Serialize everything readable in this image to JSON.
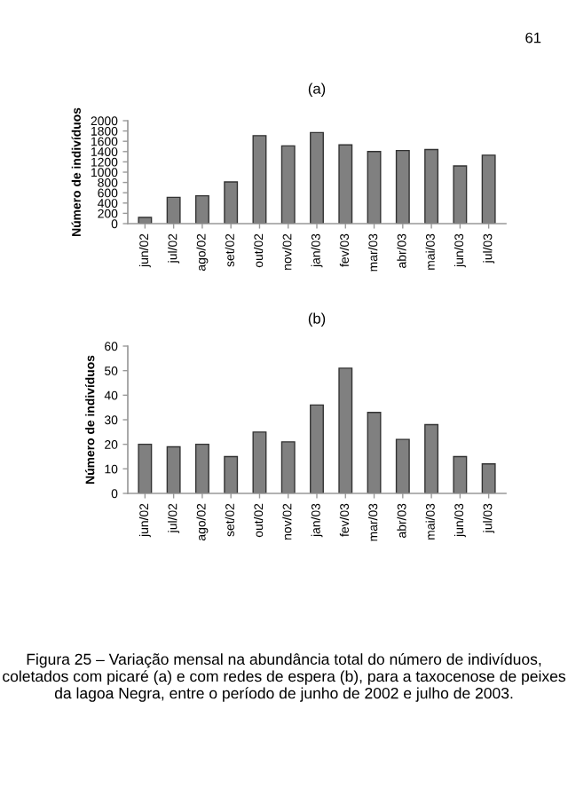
{
  "chart_data": [
    {
      "type": "bar",
      "title": "(a)",
      "ylabel": "Número de indivíduos",
      "categories": [
        "jun/02",
        "jul/02",
        "ago/02",
        "set/02",
        "out/02",
        "nov/02",
        "jan/03",
        "fev/03",
        "mar/03",
        "abr/03",
        "mai/03",
        "jun/03",
        "jul/03"
      ],
      "values": [
        120,
        510,
        540,
        810,
        1710,
        1510,
        1770,
        1530,
        1400,
        1420,
        1440,
        1120,
        1330
      ],
      "color": "#808080",
      "ylim": [
        0,
        2000
      ],
      "yticks": [
        0,
        200,
        400,
        600,
        800,
        1000,
        1200,
        1400,
        1600,
        1800,
        2000
      ],
      "grid": false,
      "legend": false,
      "annotations": [
        "61"
      ]
    },
    {
      "type": "bar",
      "title": "(b)",
      "ylabel": "Número de indivíduos",
      "categories": [
        "jun/02",
        "jul/02",
        "ago/02",
        "set/02",
        "out/02",
        "nov/02",
        "jan/03",
        "fev/03",
        "mar/03",
        "abr/03",
        "mai/03",
        "jun/03",
        "jul/03"
      ],
      "values": [
        20,
        19,
        20,
        15,
        25,
        21,
        36,
        51,
        33,
        22,
        28,
        15,
        12
      ],
      "color": "#808080",
      "ylim": [
        0,
        60
      ],
      "yticks": [
        0,
        10,
        20,
        30,
        40,
        50,
        60
      ],
      "grid": false,
      "legend": false,
      "annotations": [
        "Figura 25 – Variação mensal na abundância total do número de indivíduos, coletados com picaré (a) e com redes de espera (b), para a taxocenose de peixes da lagoa Negra, entre o período de junho de 2002 e julho de 2003."
      ]
    }
  ]
}
